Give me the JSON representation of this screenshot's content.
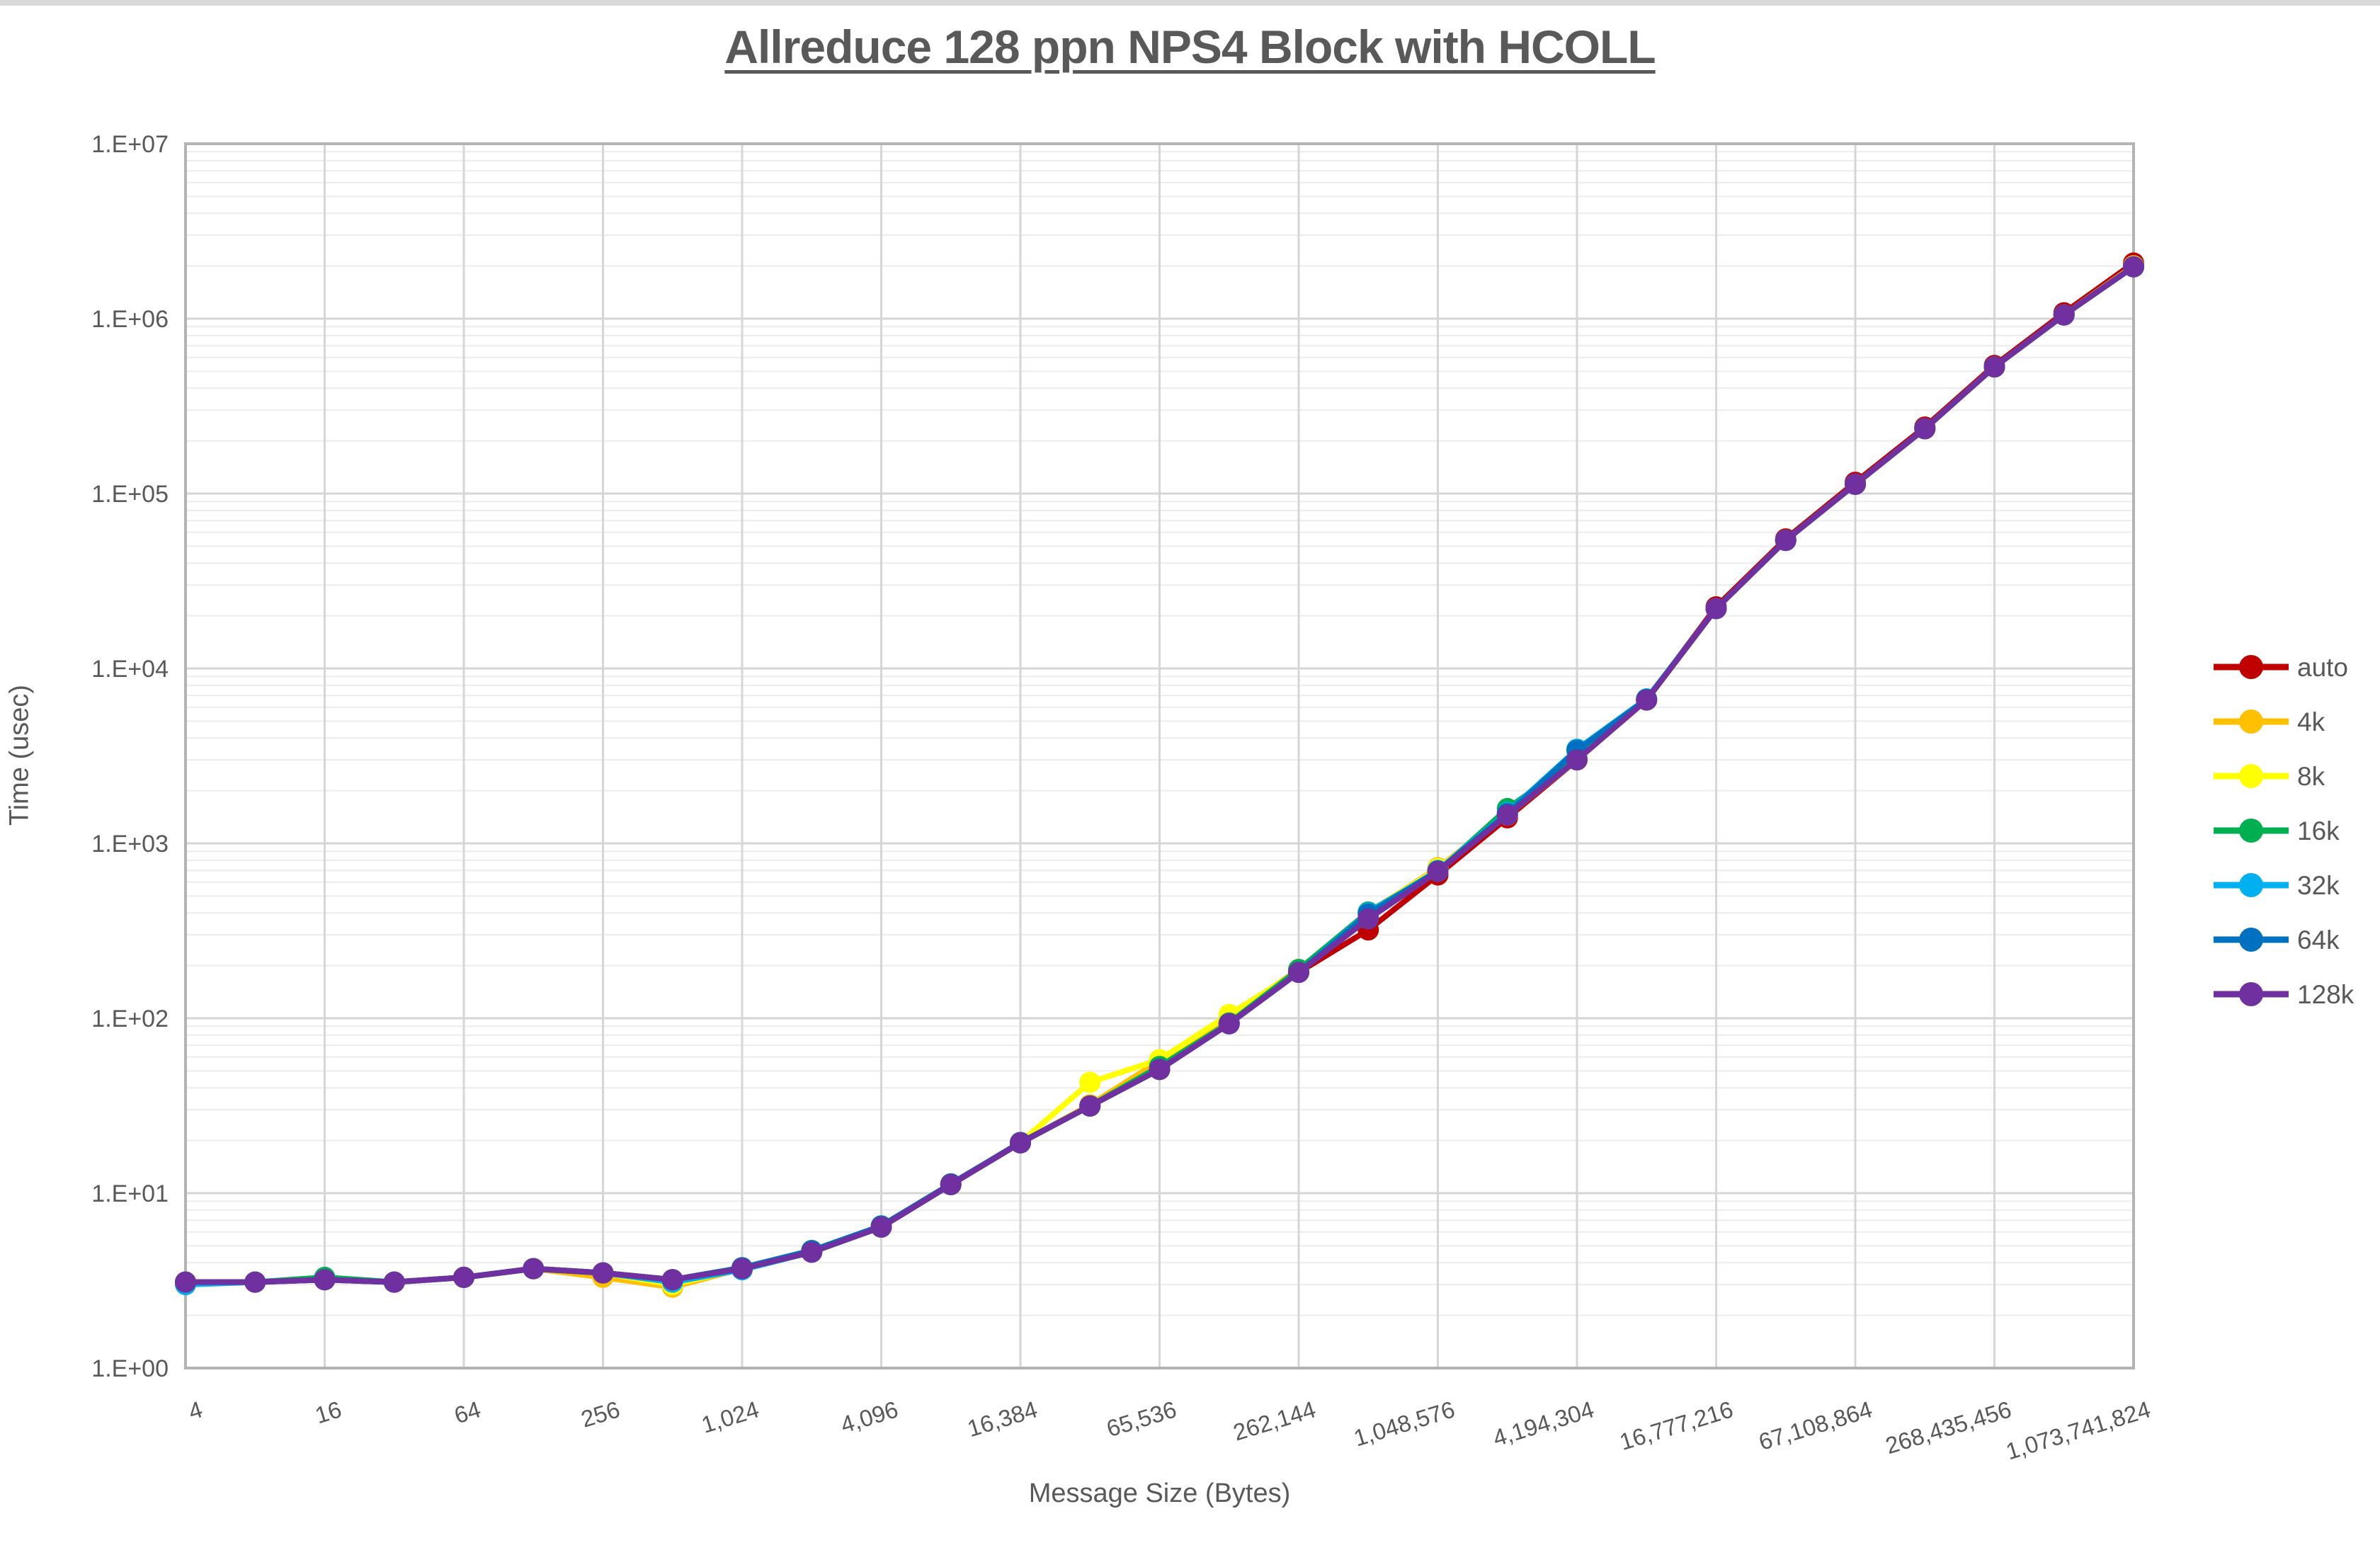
{
  "title": {
    "text": "Allreduce 128 ppn NPS4 Block with HCOLL",
    "color": "#595959"
  },
  "axes": {
    "x_title": "Message Size (Bytes)",
    "y_title": "Time (usec)",
    "text_color": "#595959"
  },
  "palette": {
    "major_grid": "#d6d6d6",
    "minor_grid": "#ececec",
    "plot_border": "#b3b3b3",
    "top_strip": "#d9d9d9"
  },
  "chart_data": {
    "type": "line",
    "title": "Allreduce 128 ppn NPS4 Block with HCOLL",
    "xlabel": "Message Size (Bytes)",
    "ylabel": "Time (usec)",
    "x_scale": "log2_categories",
    "y_scale": "log10",
    "ylim": [
      1,
      10000000
    ],
    "grid": {
      "horizontal_major": true,
      "horizontal_minor": true,
      "vertical_major": true
    },
    "legend_position": "right",
    "y_tick_labels": [
      "1.E+00",
      "1.E+01",
      "1.E+02",
      "1.E+03",
      "1.E+04",
      "1.E+05",
      "1.E+06",
      "1.E+07"
    ],
    "categories": [
      4,
      8,
      16,
      32,
      64,
      128,
      256,
      512,
      1024,
      2048,
      4096,
      8192,
      16384,
      32768,
      65536,
      131072,
      262144,
      524288,
      1048576,
      2097152,
      4194304,
      8388608,
      16777216,
      33554432,
      67108864,
      134217728,
      268435456,
      536870912,
      1073741824
    ],
    "x_tick_labels": [
      "4",
      "16",
      "64",
      "256",
      "1,024",
      "4,096",
      "16,384",
      "65,536",
      "262,144",
      "1,048,576",
      "4,194,304",
      "16,777,216",
      "67,108,864",
      "268,435,456",
      "1,073,741,824"
    ],
    "series": [
      {
        "name": "auto",
        "color": "#C00000",
        "values": [
          3.1,
          3.1,
          3.2,
          3.1,
          3.3,
          3.7,
          3.5,
          3.2,
          3.7,
          4.6,
          6.4,
          11.2,
          19.4,
          31.5,
          51,
          93,
          183,
          320,
          660,
          1400,
          3000,
          6600,
          22500,
          55000,
          116000,
          240000,
          540000,
          1080000,
          2080000
        ]
      },
      {
        "name": "4k",
        "color": "#FFC000",
        "values": [
          3.1,
          3.1,
          3.2,
          3.1,
          3.3,
          3.7,
          3.3,
          2.9,
          3.7,
          4.6,
          6.4,
          11.2,
          19.4,
          32,
          57,
          102,
          190,
          400,
          725,
          1450,
          3000,
          6600,
          22000,
          54000,
          113000,
          235000,
          530000,
          1050000,
          2000000
        ]
      },
      {
        "name": "8k",
        "color": "#FFFF00",
        "values": [
          3.1,
          3.1,
          3.2,
          3.1,
          3.3,
          3.7,
          3.5,
          3.0,
          3.7,
          4.6,
          6.4,
          11.2,
          19.5,
          43,
          58,
          105,
          186,
          400,
          715,
          1450,
          3000,
          6600,
          22000,
          54000,
          113000,
          235000,
          530000,
          1050000,
          2000000
        ]
      },
      {
        "name": "16k",
        "color": "#00B050",
        "values": [
          3.1,
          3.1,
          3.3,
          3.1,
          3.3,
          3.7,
          3.5,
          3.2,
          3.7,
          4.6,
          6.4,
          11.2,
          19.4,
          31.5,
          53,
          94,
          190,
          405,
          690,
          1580,
          3050,
          6600,
          22000,
          54000,
          113000,
          235000,
          530000,
          1050000,
          1980000
        ]
      },
      {
        "name": "32k",
        "color": "#00B0F0",
        "values": [
          3.0,
          3.1,
          3.2,
          3.1,
          3.3,
          3.7,
          3.5,
          3.1,
          3.65,
          4.6,
          6.4,
          11.2,
          19.4,
          31.5,
          51,
          93,
          183,
          400,
          700,
          1500,
          3450,
          6700,
          22000,
          54000,
          113000,
          235000,
          530000,
          1050000,
          1980000
        ]
      },
      {
        "name": "64k",
        "color": "#0070C0",
        "values": [
          3.1,
          3.1,
          3.2,
          3.1,
          3.3,
          3.7,
          3.5,
          3.2,
          3.75,
          4.7,
          6.5,
          11.3,
          19.5,
          31.5,
          51,
          93,
          183,
          395,
          695,
          1480,
          3400,
          6650,
          22000,
          54000,
          113000,
          235000,
          530000,
          1050000,
          1980000
        ]
      },
      {
        "name": "128k",
        "color": "#7030A0",
        "values": [
          3.1,
          3.1,
          3.2,
          3.1,
          3.3,
          3.7,
          3.5,
          3.2,
          3.7,
          4.6,
          6.4,
          11.2,
          19.4,
          31.5,
          51,
          93,
          183,
          370,
          690,
          1450,
          3000,
          6600,
          22000,
          54000,
          113000,
          235000,
          530000,
          1050000,
          1980000
        ]
      }
    ]
  }
}
